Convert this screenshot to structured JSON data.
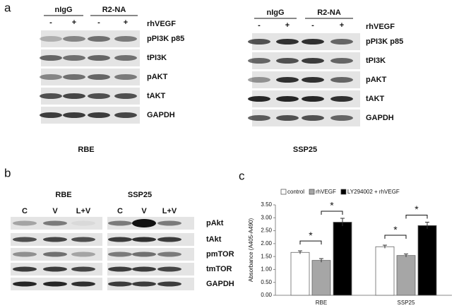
{
  "panels": {
    "a": {
      "label": "a",
      "blots": [
        {
          "cell_line": "RBE",
          "groups": [
            "nIgG",
            "R2-NA"
          ],
          "lanes": [
            "-",
            "+",
            "-",
            "+"
          ],
          "treatment": "rhVEGF",
          "bands": [
            "pPI3K p85",
            "tPI3K",
            "pAKT",
            "tAKT",
            "GAPDH"
          ]
        },
        {
          "cell_line": "SSP25",
          "groups": [
            "nIgG",
            "R2-NA"
          ],
          "lanes": [
            "-",
            "+",
            "-",
            "+"
          ],
          "treatment": "rhVEGF",
          "bands": [
            "pPI3K p85",
            "tPI3K",
            "pAKT",
            "tAKT",
            "GAPDH"
          ]
        }
      ]
    },
    "b": {
      "label": "b",
      "blots": [
        {
          "cell_line": "RBE",
          "lanes": [
            "C",
            "V",
            "L+V"
          ]
        },
        {
          "cell_line": "SSP25",
          "lanes": [
            "C",
            "V",
            "L+V"
          ]
        }
      ],
      "bands": [
        "pAkt",
        "tAkt",
        "pmTOR",
        "tmTOR",
        "GAPDH"
      ]
    },
    "c": {
      "label": "c"
    }
  },
  "chart_data": {
    "type": "bar",
    "y_label": "Absorbance (A405-A490)",
    "categories": [
      "RBE",
      "SSP25"
    ],
    "series": [
      {
        "name": "control",
        "color": "#ffffff",
        "values": [
          1.66,
          1.88
        ],
        "errors": [
          0.06,
          0.06
        ]
      },
      {
        "name": "rhVEGF",
        "color": "#a6a6a6",
        "values": [
          1.35,
          1.54
        ],
        "errors": [
          0.07,
          0.06
        ]
      },
      {
        "name": "LY294002 + rhVEGF",
        "color": "#000000",
        "values": [
          2.83,
          2.7
        ],
        "errors": [
          0.15,
          0.13
        ]
      }
    ],
    "ylim": [
      0,
      3.5
    ],
    "yticks": [
      {
        "value": 0,
        "label": "0.00"
      },
      {
        "value": 0.5,
        "label": "0.50"
      },
      {
        "value": 1,
        "label": "1.00"
      },
      {
        "value": 1.5,
        "label": "1.50"
      },
      {
        "value": 2,
        "label": "2.00"
      },
      {
        "value": 2.5,
        "label": "2.50"
      },
      {
        "value": 3,
        "label": "3.00"
      },
      {
        "value": 3.5,
        "label": "3.50"
      }
    ],
    "annotations": [
      "*",
      "*",
      "*",
      "*"
    ],
    "legend": "top"
  }
}
